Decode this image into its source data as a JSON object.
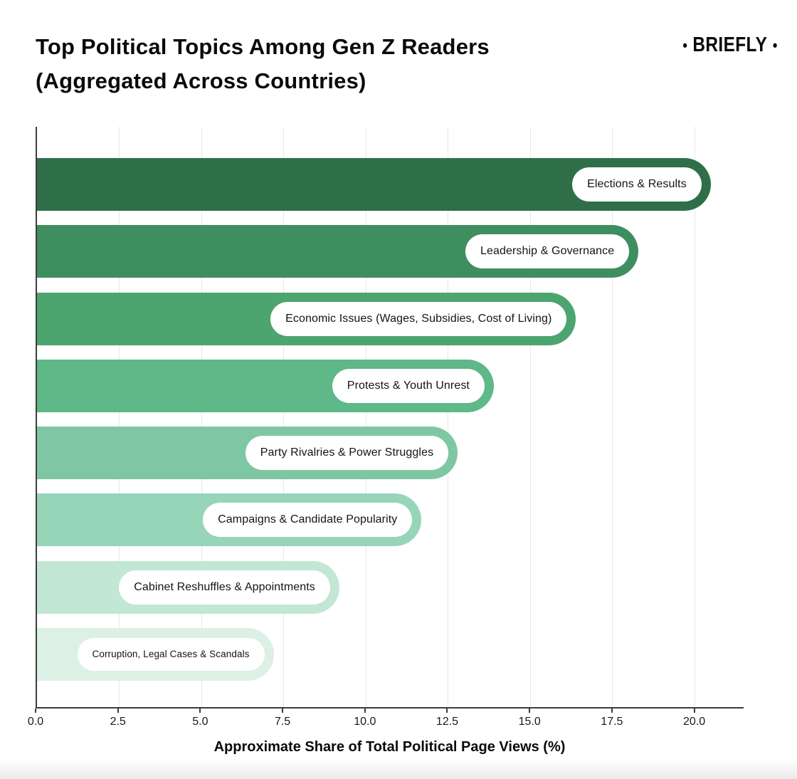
{
  "header": {
    "title_line1": "Top Political Topics Among Gen Z Readers",
    "title_line2": "(Aggregated Across Countries)",
    "logo_text": "BRIEFLY",
    "logo_dot": "•"
  },
  "chart_data": {
    "type": "bar",
    "orientation": "horizontal",
    "title": "Top Political Topics Among Gen Z Readers (Aggregated Across Countries)",
    "categories": [
      "Elections & Results",
      "Leadership & Governance",
      "Economic Issues (Wages, Subsidies, Cost of Living)",
      "Protests & Youth Unrest",
      "Party Rivalries & Power Struggles",
      "Campaigns & Candidate Popularity",
      "Cabinet Reshuffles & Appointments",
      "Corruption, Legal Cases & Scandals"
    ],
    "values": [
      20.5,
      18.3,
      16.4,
      13.9,
      12.8,
      11.7,
      9.2,
      7.2
    ],
    "bar_colors": [
      "#2e6f4a",
      "#3f8e60",
      "#4ca56f",
      "#5eb887",
      "#7fc7a3",
      "#97d5b9",
      "#c2e7d4",
      "#dcf0e6"
    ],
    "label_pill_bg": "#ffffff",
    "label_text_color": "#141414",
    "xlabel": "Approximate Share of Total Political Page Views (%)",
    "x_ticks": [
      0.0,
      2.5,
      5.0,
      7.5,
      10.0,
      12.5,
      15.0,
      17.5,
      20.0
    ],
    "x_tick_labels": [
      "0.0",
      "2.5",
      "5.0",
      "7.5",
      "10.0",
      "12.5",
      "15.0",
      "17.5",
      "20.0"
    ],
    "xlim": [
      0,
      21.5
    ],
    "grid": true,
    "gridline_color": "#e7e7e7",
    "legend": "none"
  }
}
